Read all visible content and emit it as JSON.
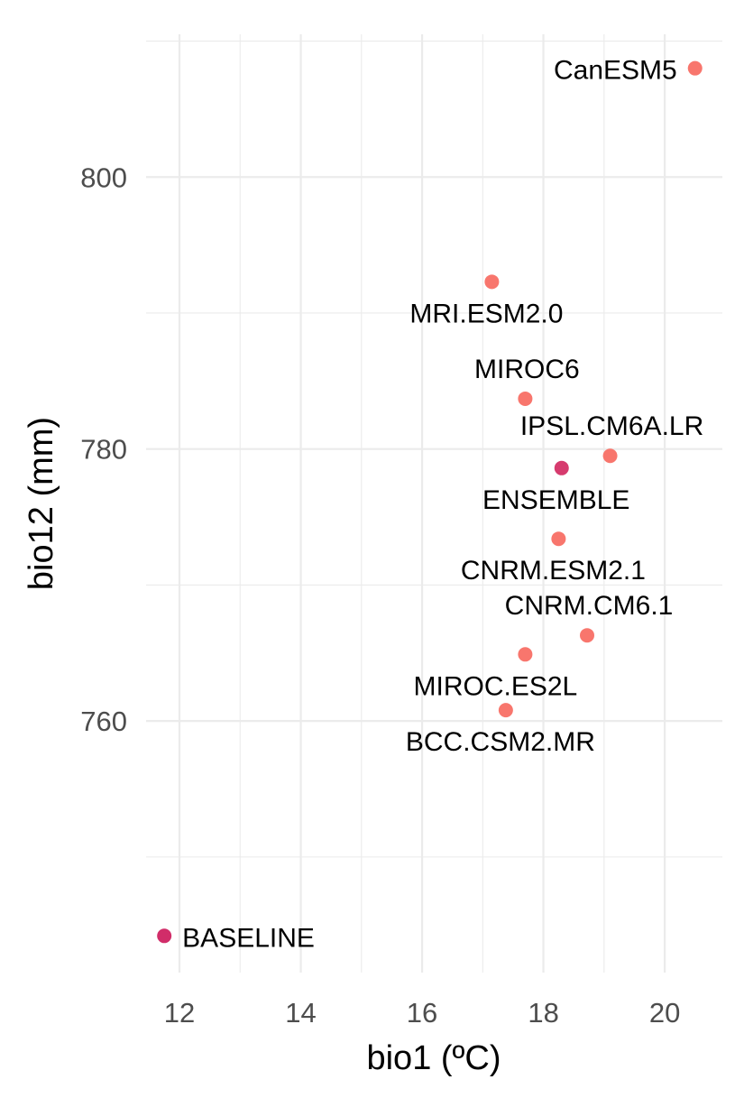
{
  "chart_data": {
    "type": "scatter",
    "title": "",
    "xlabel": "bio1 (ºC)",
    "ylabel": "bio12 (mm)",
    "xlim": [
      11.45,
      20.95
    ],
    "ylim": [
      741.5,
      810.5
    ],
    "x_ticks": [
      12,
      14,
      16,
      18,
      20
    ],
    "y_ticks": [
      760,
      780,
      800
    ],
    "grid": true,
    "legend": "none",
    "points": [
      {
        "label": "CanESM5",
        "x": 20.5,
        "y": 808.0,
        "color": "#f8766d",
        "label_pos": "left"
      },
      {
        "label": "MRI.ESM2.0",
        "x": 17.15,
        "y": 792.3,
        "color": "#f8766d",
        "label_pos": "below"
      },
      {
        "label": "MIROC6",
        "x": 17.7,
        "y": 783.7,
        "color": "#f8766d",
        "label_pos": "above"
      },
      {
        "label": "IPSL.CM6A.LR",
        "x": 19.1,
        "y": 779.5,
        "color": "#f8766d",
        "label_pos": "above"
      },
      {
        "label": "ENSEMBLE",
        "x": 18.3,
        "y": 778.6,
        "color": "#d63b6e",
        "label_pos": "below"
      },
      {
        "label": "CNRM.ESM2.1",
        "x": 18.25,
        "y": 773.4,
        "color": "#f8766d",
        "label_pos": "below"
      },
      {
        "label": "CNRM.CM6.1",
        "x": 18.72,
        "y": 766.3,
        "color": "#f8766d",
        "label_pos": "above"
      },
      {
        "label": "MIROC.ES2L",
        "x": 17.7,
        "y": 764.9,
        "color": "#f8766d",
        "label_pos": "below-left"
      },
      {
        "label": "BCC.CSM2.MR",
        "x": 17.38,
        "y": 760.8,
        "color": "#f8766d",
        "label_pos": "below"
      },
      {
        "label": "BASELINE",
        "x": 11.75,
        "y": 744.2,
        "color": "#d12d69",
        "label_pos": "right"
      }
    ]
  }
}
